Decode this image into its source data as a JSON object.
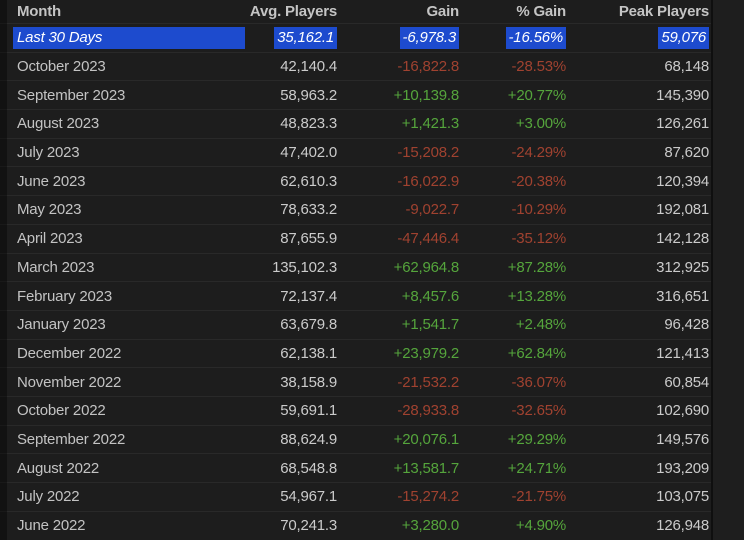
{
  "table": {
    "columns": [
      "Month",
      "Avg. Players",
      "Gain",
      "% Gain",
      "Peak Players"
    ],
    "rows": [
      {
        "month": "Last 30 Days",
        "avg_players": "35,162.1",
        "gain": "-6,978.3",
        "gain_pct": "-16.56%",
        "peak_players": "59,076",
        "trend": "down",
        "selected": true
      },
      {
        "month": "October 2023",
        "avg_players": "42,140.4",
        "gain": "-16,822.8",
        "gain_pct": "-28.53%",
        "peak_players": "68,148",
        "trend": "down",
        "selected": false
      },
      {
        "month": "September 2023",
        "avg_players": "58,963.2",
        "gain": "+10,139.8",
        "gain_pct": "+20.77%",
        "peak_players": "145,390",
        "trend": "up",
        "selected": false
      },
      {
        "month": "August 2023",
        "avg_players": "48,823.3",
        "gain": "+1,421.3",
        "gain_pct": "+3.00%",
        "peak_players": "126,261",
        "trend": "up",
        "selected": false
      },
      {
        "month": "July 2023",
        "avg_players": "47,402.0",
        "gain": "-15,208.2",
        "gain_pct": "-24.29%",
        "peak_players": "87,620",
        "trend": "down",
        "selected": false
      },
      {
        "month": "June 2023",
        "avg_players": "62,610.3",
        "gain": "-16,022.9",
        "gain_pct": "-20.38%",
        "peak_players": "120,394",
        "trend": "down",
        "selected": false
      },
      {
        "month": "May 2023",
        "avg_players": "78,633.2",
        "gain": "-9,022.7",
        "gain_pct": "-10.29%",
        "peak_players": "192,081",
        "trend": "down",
        "selected": false
      },
      {
        "month": "April 2023",
        "avg_players": "87,655.9",
        "gain": "-47,446.4",
        "gain_pct": "-35.12%",
        "peak_players": "142,128",
        "trend": "down",
        "selected": false
      },
      {
        "month": "March 2023",
        "avg_players": "135,102.3",
        "gain": "+62,964.8",
        "gain_pct": "+87.28%",
        "peak_players": "312,925",
        "trend": "up",
        "selected": false
      },
      {
        "month": "February 2023",
        "avg_players": "72,137.4",
        "gain": "+8,457.6",
        "gain_pct": "+13.28%",
        "peak_players": "316,651",
        "trend": "up",
        "selected": false
      },
      {
        "month": "January 2023",
        "avg_players": "63,679.8",
        "gain": "+1,541.7",
        "gain_pct": "+2.48%",
        "peak_players": "96,428",
        "trend": "up",
        "selected": false
      },
      {
        "month": "December 2022",
        "avg_players": "62,138.1",
        "gain": "+23,979.2",
        "gain_pct": "+62.84%",
        "peak_players": "121,413",
        "trend": "up",
        "selected": false
      },
      {
        "month": "November 2022",
        "avg_players": "38,158.9",
        "gain": "-21,532.2",
        "gain_pct": "-36.07%",
        "peak_players": "60,854",
        "trend": "down",
        "selected": false
      },
      {
        "month": "October 2022",
        "avg_players": "59,691.1",
        "gain": "-28,933.8",
        "gain_pct": "-32.65%",
        "peak_players": "102,690",
        "trend": "down",
        "selected": false
      },
      {
        "month": "September 2022",
        "avg_players": "88,624.9",
        "gain": "+20,076.1",
        "gain_pct": "+29.29%",
        "peak_players": "149,576",
        "trend": "up",
        "selected": false
      },
      {
        "month": "August 2022",
        "avg_players": "68,548.8",
        "gain": "+13,581.7",
        "gain_pct": "+24.71%",
        "peak_players": "193,209",
        "trend": "up",
        "selected": false
      },
      {
        "month": "July 2022",
        "avg_players": "54,967.1",
        "gain": "-15,274.2",
        "gain_pct": "-21.75%",
        "peak_players": "103,075",
        "trend": "down",
        "selected": false
      },
      {
        "month": "June 2022",
        "avg_players": "70,241.3",
        "gain": "+3,280.0",
        "gain_pct": "+4.90%",
        "peak_players": "126,948",
        "trend": "up",
        "selected": false
      }
    ]
  },
  "colors": {
    "background": "#1d1d1d",
    "header_text": "#c4c4c4",
    "month_text": "#c3c3c3",
    "row_text": "#cbcbcb",
    "row_divider": "#292929",
    "gain_positive": "#55a53c",
    "gain_negative": "#a04230",
    "selection_highlight": "#1d4bce",
    "selection_text": "#ffffff"
  }
}
